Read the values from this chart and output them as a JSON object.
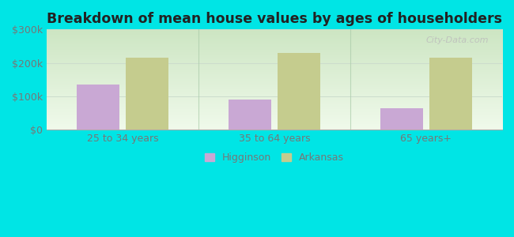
{
  "title": "Breakdown of mean house values by ages of householders",
  "categories": [
    "25 to 34 years",
    "35 to 64 years",
    "65 years+"
  ],
  "higginson_values": [
    135000,
    90000,
    65000
  ],
  "arkansas_values": [
    215000,
    230000,
    215000
  ],
  "higginson_color": "#c9a8d4",
  "arkansas_color": "#c5cc8e",
  "background_outer": "#00e5e5",
  "background_inner_bottom": "#d4edca",
  "background_inner_top": "#f0faf0",
  "ylim": [
    0,
    300000
  ],
  "yticks": [
    0,
    100000,
    200000,
    300000
  ],
  "ytick_labels": [
    "$0",
    "$100k",
    "$200k",
    "$300k"
  ],
  "legend_labels": [
    "Higginson",
    "Arkansas"
  ],
  "bar_width": 0.28,
  "title_fontsize": 12.5,
  "tick_fontsize": 9,
  "legend_fontsize": 9,
  "watermark": "City-Data.com"
}
